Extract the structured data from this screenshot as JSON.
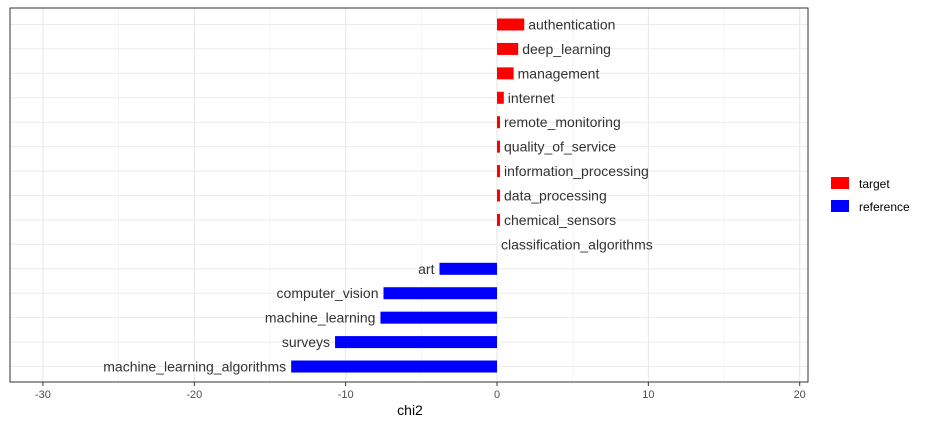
{
  "chart_data": {
    "type": "bar",
    "orientation": "horizontal",
    "title": "",
    "xlabel": "chi2",
    "ylabel": "",
    "xlim": [
      -31.5,
      20.5
    ],
    "xticks": [
      -30,
      -20,
      -10,
      0,
      10,
      20
    ],
    "xtick_labels": [
      "-30",
      "-20",
      "-10",
      "0",
      "10",
      "20"
    ],
    "grid": true,
    "legend_position": "right",
    "legend": [
      {
        "label": "target",
        "color": "#ff0000"
      },
      {
        "label": "reference",
        "color": "#0000ff"
      }
    ],
    "categories": [
      "authentication",
      "deep_learning",
      "management",
      "internet",
      "remote_monitoring",
      "quality_of_service",
      "information_processing",
      "data_processing",
      "chemical_sensors",
      "classification_algorithms",
      "art",
      "computer_vision",
      "machine_learning",
      "surveys",
      "machine_learning_algorithms"
    ],
    "values": [
      1.8,
      1.4,
      1.1,
      0.45,
      0.2,
      0.2,
      0.2,
      0.2,
      0.2,
      0.0,
      -3.8,
      -7.5,
      -7.7,
      -10.7,
      -13.6
    ],
    "groups": [
      "target",
      "target",
      "target",
      "target",
      "target",
      "target",
      "target",
      "target",
      "target",
      "target",
      "reference",
      "reference",
      "reference",
      "reference",
      "reference"
    ]
  }
}
